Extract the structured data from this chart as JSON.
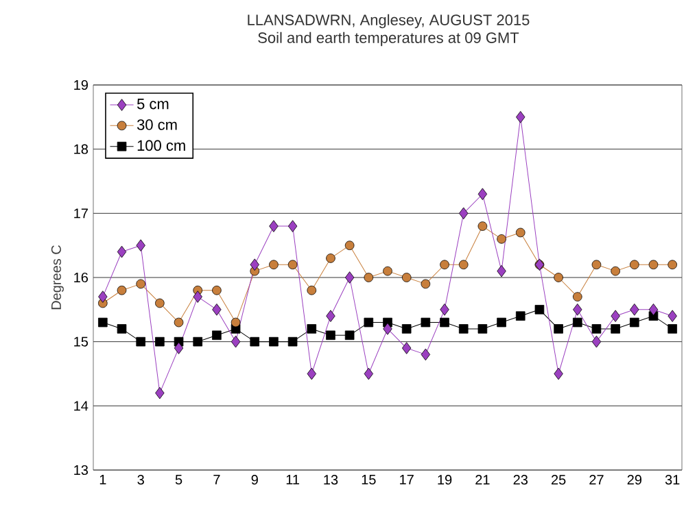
{
  "chart_data": {
    "type": "line",
    "title": "LLANSADWRN, Anglesey, AUGUST 2015",
    "subtitle": "Soil and earth temperatures at 09 GMT",
    "ylabel": "Degrees C",
    "x": [
      1,
      2,
      3,
      4,
      5,
      6,
      7,
      8,
      9,
      10,
      11,
      12,
      13,
      14,
      15,
      16,
      17,
      18,
      19,
      20,
      21,
      22,
      23,
      24,
      25,
      26,
      27,
      28,
      29,
      30,
      31
    ],
    "series": [
      {
        "name": "5 cm",
        "color": "#9b40c0",
        "marker": "diamond",
        "values": [
          15.7,
          16.4,
          16.5,
          14.2,
          14.9,
          15.7,
          15.5,
          15.0,
          16.2,
          16.8,
          16.8,
          14.5,
          15.4,
          16.0,
          14.5,
          15.2,
          14.9,
          14.8,
          15.5,
          17.0,
          17.3,
          16.1,
          18.5,
          16.2,
          14.5,
          15.5,
          15.0,
          15.4,
          15.5,
          15.5,
          15.4
        ]
      },
      {
        "name": "30 cm",
        "color": "#c87f3c",
        "marker": "circle",
        "values": [
          15.6,
          15.8,
          15.9,
          15.6,
          15.3,
          15.8,
          15.8,
          15.3,
          16.1,
          16.2,
          16.2,
          15.8,
          16.3,
          16.5,
          16.0,
          16.1,
          16.0,
          15.9,
          16.2,
          16.2,
          16.8,
          16.6,
          16.7,
          16.2,
          16.0,
          15.7,
          16.2,
          16.1,
          16.2,
          16.2,
          16.2
        ]
      },
      {
        "name": "100 cm",
        "color": "#000000",
        "marker": "square",
        "values": [
          15.3,
          15.2,
          15.0,
          15.0,
          15.0,
          15.0,
          15.1,
          15.2,
          15.0,
          15.0,
          15.0,
          15.2,
          15.1,
          15.1,
          15.3,
          15.3,
          15.2,
          15.3,
          15.3,
          15.2,
          15.2,
          15.3,
          15.4,
          15.5,
          15.2,
          15.3,
          15.2,
          15.2,
          15.3,
          15.4,
          15.2
        ]
      }
    ],
    "xlim": [
      0.5,
      31.5
    ],
    "ylim": [
      13,
      19
    ],
    "xticks": [
      1,
      3,
      5,
      7,
      9,
      11,
      13,
      15,
      17,
      19,
      21,
      23,
      25,
      27,
      29,
      31
    ],
    "yticks": [
      13,
      14,
      15,
      16,
      17,
      18,
      19
    ],
    "grid": "y",
    "legend": "top left",
    "line_style": "solid"
  }
}
